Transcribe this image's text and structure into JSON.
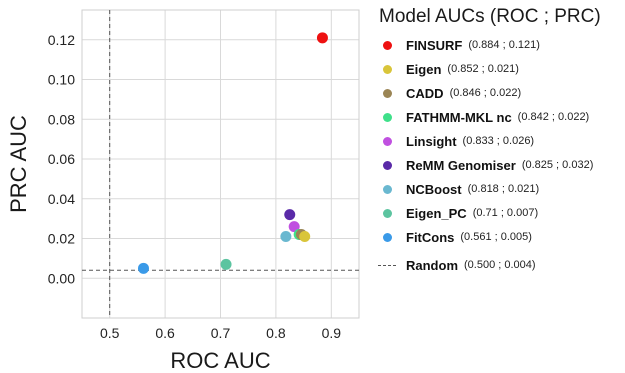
{
  "chart_data": {
    "type": "scatter",
    "xlabel": "ROC AUC",
    "ylabel": "PRC AUC",
    "xlim": [
      0.45,
      0.95
    ],
    "ylim": [
      -0.02,
      0.135
    ],
    "xticks": [
      "0.5",
      "0.6",
      "0.7",
      "0.8",
      "0.9"
    ],
    "yticks": [
      "0.00",
      "0.02",
      "0.04",
      "0.06",
      "0.08",
      "0.10",
      "0.12"
    ],
    "grid": true,
    "legend_title": "Model AUCs (ROC ; PRC)",
    "legend_placement": "right",
    "series": [
      {
        "name": "FINSURF",
        "label": "(0.884 ; 0.121)",
        "x": 0.884,
        "y": 0.121,
        "color": "#ee1111"
      },
      {
        "name": "Eigen",
        "label": "(0.852 ; 0.021)",
        "x": 0.852,
        "y": 0.021,
        "color": "#d9c53a"
      },
      {
        "name": "CADD",
        "label": "(0.846 ; 0.022)",
        "x": 0.846,
        "y": 0.022,
        "color": "#9b8555"
      },
      {
        "name": "FATHMM-MKL nc",
        "label": "(0.842 ; 0.022)",
        "x": 0.842,
        "y": 0.022,
        "color": "#3fe08a"
      },
      {
        "name": "Linsight",
        "label": "(0.833 ; 0.026)",
        "x": 0.833,
        "y": 0.026,
        "color": "#c050e0"
      },
      {
        "name": "ReMM Genomiser",
        "label": "(0.825 ; 0.032)",
        "x": 0.825,
        "y": 0.032,
        "color": "#5a2aa8"
      },
      {
        "name": "NCBoost",
        "label": "(0.818 ; 0.021)",
        "x": 0.818,
        "y": 0.021,
        "color": "#6ab8d0"
      },
      {
        "name": "Eigen_PC",
        "label": "(0.71 ; 0.007)",
        "x": 0.71,
        "y": 0.007,
        "color": "#5cc4a0"
      },
      {
        "name": "FitCons",
        "label": "(0.561 ; 0.005)",
        "x": 0.561,
        "y": 0.005,
        "color": "#3a9ae8"
      }
    ],
    "reference_lines": [
      {
        "name": "Random",
        "label": "(0.500 ; 0.004)",
        "x": 0.5,
        "y": 0.004,
        "style": "dashed",
        "color": "#555555"
      }
    ]
  }
}
